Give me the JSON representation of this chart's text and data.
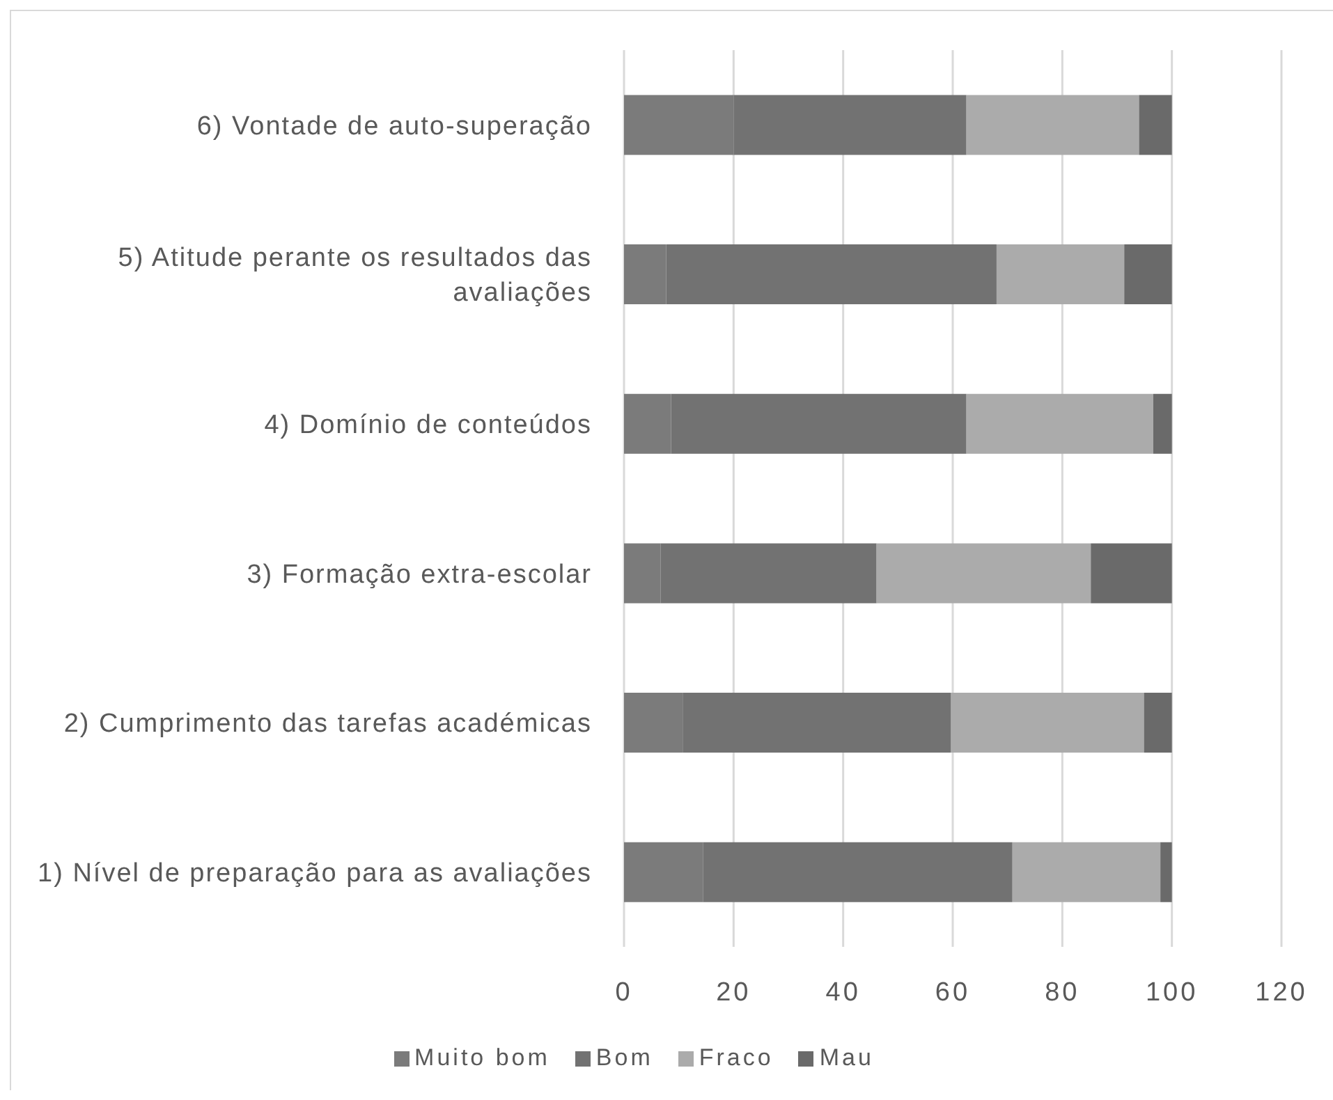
{
  "chart_data": {
    "type": "bar",
    "orientation": "horizontal",
    "stacked": true,
    "categories": [
      "6) Vontade de auto-superação",
      "5) Atitude perante os resultados das avaliações",
      "4) Domínio de conteúdos",
      "3) Formação extra-escolar",
      "2) Cumprimento das tarefas académicas",
      "1) Nível de preparação para as avaliações"
    ],
    "series": [
      {
        "name": "Muito bom",
        "color": "#7b7b7b",
        "values": [
          20,
          7.7,
          8.6,
          6.7,
          10.7,
          14.4
        ]
      },
      {
        "name": "Bom",
        "color": "#727272",
        "values": [
          42.5,
          60.3,
          53.9,
          39.4,
          49.0,
          56.5
        ]
      },
      {
        "name": "Fraco",
        "color": "#ababab",
        "values": [
          31.5,
          23.3,
          34.1,
          39.1,
          35.2,
          27.0
        ]
      },
      {
        "name": "Mau",
        "color": "#6a6a6a",
        "values": [
          6,
          8.7,
          3.4,
          14.8,
          5.1,
          2.1
        ]
      }
    ],
    "xlim": [
      0,
      120
    ],
    "xticks": [
      0,
      20,
      40,
      60,
      80,
      100,
      120
    ],
    "grid": "x",
    "legend": "bottom"
  }
}
